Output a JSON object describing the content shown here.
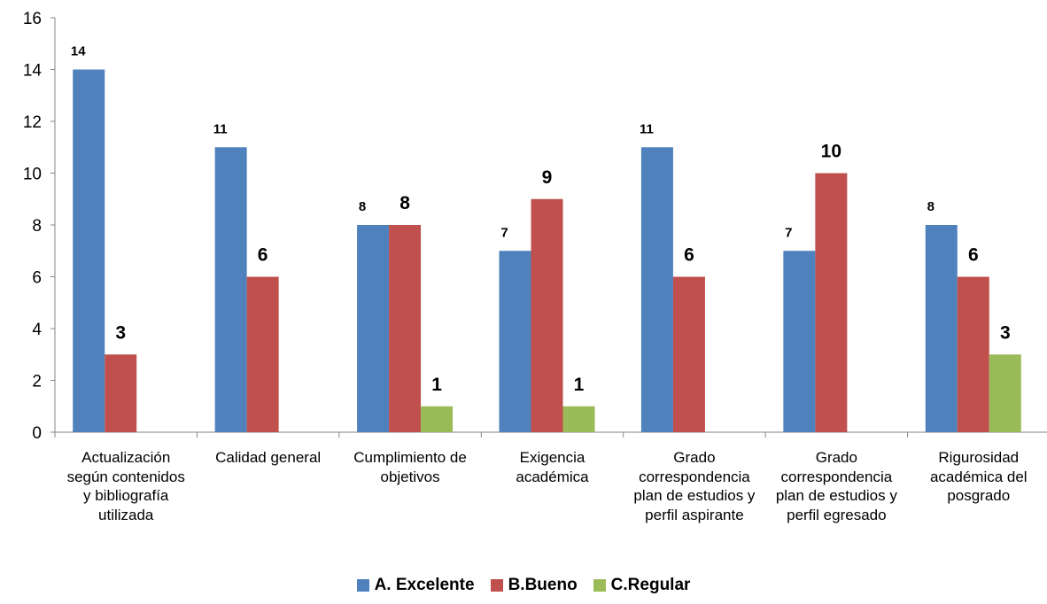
{
  "chart_data": {
    "type": "bar",
    "categories": [
      "Actualización según contenidos y bibliografía utilizada",
      "Calidad general",
      "Cumplimiento de objetivos",
      "Exigencia académica",
      "Grado correspondencia plan de estudios y perfil aspirante",
      "Grado correspondencia plan de estudios y perfil egresado",
      "Rigurosidad académica del posgrado"
    ],
    "category_lines": [
      [
        "Actualización",
        "según contenidos",
        "y bibliografía",
        "utilizada"
      ],
      [
        "Calidad general"
      ],
      [
        "Cumplimiento de",
        "objetivos"
      ],
      [
        "Exigencia",
        "académica"
      ],
      [
        "Grado",
        "correspondencia",
        "plan de estudios y",
        "perfil aspirante"
      ],
      [
        "Grado",
        "correspondencia",
        "plan de estudios y",
        "perfil egresado"
      ],
      [
        "Rigurosidad",
        "académica del",
        "posgrado"
      ]
    ],
    "series": [
      {
        "name": "A. Excelente",
        "color": "#4F81BD",
        "values": [
          14,
          11,
          8,
          7,
          11,
          7,
          8
        ]
      },
      {
        "name": "B.Bueno",
        "color": "#C0504D",
        "values": [
          3,
          6,
          8,
          9,
          6,
          10,
          6
        ]
      },
      {
        "name": "C.Regular",
        "color": "#9BBB59",
        "values": [
          null,
          null,
          1,
          1,
          null,
          null,
          3
        ]
      }
    ],
    "ylim": [
      0,
      16
    ],
    "yticks": [
      0,
      2,
      4,
      6,
      8,
      10,
      12,
      14,
      16
    ],
    "grid": false,
    "legend_position": "bottom",
    "title": "",
    "xlabel": "",
    "ylabel": ""
  }
}
